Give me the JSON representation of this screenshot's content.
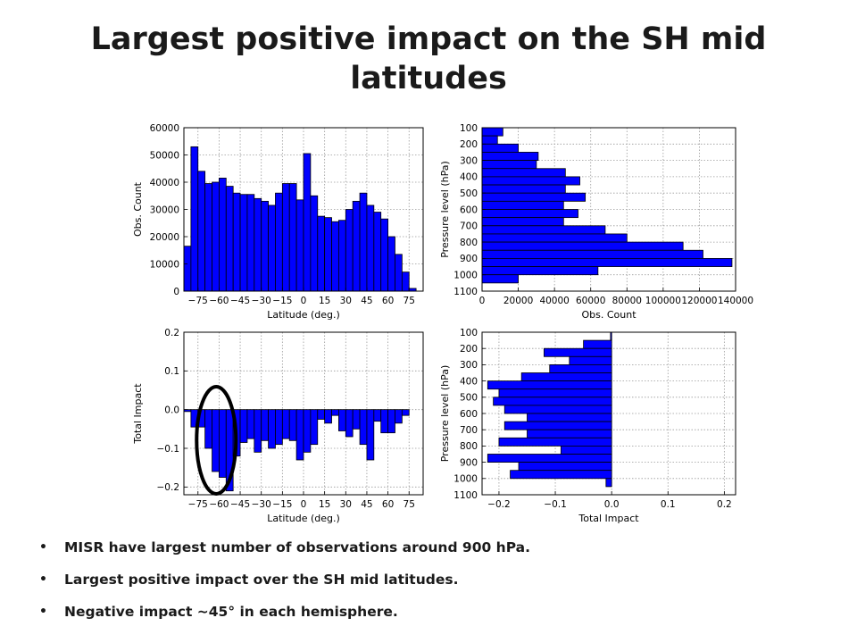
{
  "title": "Largest positive impact on the SH mid latitudes",
  "bullets": [
    "MISR have largest number of observations around 900 hPa.",
    "Largest positive impact over the SH mid latitudes.",
    "Negative impact ~45° in each hemisphere."
  ],
  "colors": {
    "bar": "#0000ff",
    "edge": "#000000",
    "grid": "#9a9a9a",
    "annotation": "#000000"
  },
  "chart_data": [
    {
      "type": "bar",
      "orientation": "vertical",
      "xlabel": "Latitude (deg.)",
      "ylabel": "Obs. Count",
      "xlim": [
        -85,
        85
      ],
      "ylim": [
        0,
        60000
      ],
      "xticks": [
        -75,
        -60,
        -45,
        -30,
        -15,
        0,
        15,
        30,
        45,
        60,
        75
      ],
      "xtick_labels": [
        "−75",
        "−60",
        "−45",
        "−30",
        "−15",
        "0",
        "15",
        "30",
        "45",
        "60",
        "75"
      ],
      "yticks": [
        0,
        10000,
        20000,
        30000,
        40000,
        50000,
        60000
      ],
      "bin_width": 5,
      "x": [
        -82.5,
        -77.5,
        -72.5,
        -67.5,
        -62.5,
        -57.5,
        -52.5,
        -47.5,
        -42.5,
        -37.5,
        -32.5,
        -27.5,
        -22.5,
        -17.5,
        -12.5,
        -7.5,
        -2.5,
        2.5,
        7.5,
        12.5,
        17.5,
        22.5,
        27.5,
        32.5,
        37.5,
        42.5,
        47.5,
        52.5,
        57.5,
        62.5,
        67.5,
        72.5,
        77.5
      ],
      "values": [
        16500,
        53000,
        44000,
        39500,
        40000,
        41500,
        38500,
        36000,
        35500,
        35500,
        34000,
        33000,
        31500,
        36000,
        39500,
        39500,
        33500,
        50500,
        35000,
        27500,
        27000,
        25500,
        26000,
        30000,
        33000,
        36000,
        31500,
        29000,
        26500,
        20000,
        13500,
        7000,
        1000
      ],
      "grid": true
    },
    {
      "type": "bar",
      "orientation": "horizontal",
      "xlabel": "Obs. Count",
      "ylabel": "Pressure level (hPa)",
      "xlim": [
        0,
        140000
      ],
      "ylim": [
        1100,
        100
      ],
      "xticks": [
        0,
        20000,
        40000,
        60000,
        80000,
        100000,
        120000,
        140000
      ],
      "xtick_labels": [
        "0",
        "20000",
        "40000",
        "60000",
        "80000",
        "100000",
        "120000",
        "140000"
      ],
      "yticks": [
        100,
        200,
        300,
        400,
        500,
        600,
        700,
        800,
        900,
        1000,
        1100
      ],
      "bin_width": 50,
      "y": [
        125,
        175,
        225,
        275,
        325,
        375,
        425,
        475,
        525,
        575,
        625,
        675,
        725,
        775,
        825,
        875,
        925,
        975,
        1025
      ],
      "values": [
        11500,
        8500,
        20000,
        31000,
        30000,
        46000,
        54000,
        46000,
        57000,
        45000,
        53000,
        45000,
        68000,
        80000,
        111000,
        122000,
        138000,
        64000,
        20000
      ],
      "grid": true
    },
    {
      "type": "bar",
      "orientation": "vertical",
      "xlabel": "Latitude (deg.)",
      "ylabel": "Total Impact",
      "xlim": [
        -85,
        85
      ],
      "ylim": [
        -0.22,
        0.2
      ],
      "xticks": [
        -75,
        -60,
        -45,
        -30,
        -15,
        0,
        15,
        30,
        45,
        60,
        75
      ],
      "xtick_labels": [
        "−75",
        "−60",
        "−45",
        "−30",
        "−15",
        "0",
        "15",
        "30",
        "45",
        "60",
        "75"
      ],
      "yticks": [
        -0.2,
        -0.1,
        0.0,
        0.1,
        0.2
      ],
      "ytick_labels": [
        "−0.2",
        "−0.1",
        "0.0",
        "0.1",
        "0.2"
      ],
      "bin_width": 5,
      "x": [
        -82.5,
        -77.5,
        -72.5,
        -67.5,
        -62.5,
        -57.5,
        -52.5,
        -47.5,
        -42.5,
        -37.5,
        -32.5,
        -27.5,
        -22.5,
        -17.5,
        -12.5,
        -7.5,
        -2.5,
        2.5,
        7.5,
        12.5,
        17.5,
        22.5,
        27.5,
        32.5,
        37.5,
        42.5,
        47.5,
        52.5,
        57.5,
        62.5,
        67.5,
        72.5
      ],
      "values": [
        -0.005,
        -0.045,
        -0.045,
        -0.1,
        -0.16,
        -0.175,
        -0.21,
        -0.12,
        -0.085,
        -0.075,
        -0.11,
        -0.08,
        -0.1,
        -0.09,
        -0.075,
        -0.08,
        -0.13,
        -0.11,
        -0.09,
        -0.025,
        -0.035,
        -0.015,
        -0.055,
        -0.07,
        -0.05,
        -0.09,
        -0.13,
        -0.03,
        -0.06,
        -0.06,
        -0.035,
        -0.015
      ],
      "grid": true,
      "annotation": "ellipse around −75 to −45"
    },
    {
      "type": "bar",
      "orientation": "horizontal",
      "xlabel": "Total Impact",
      "ylabel": "Pressure level (hPa)",
      "xlim": [
        -0.23,
        0.22
      ],
      "ylim": [
        1100,
        100
      ],
      "xticks": [
        -0.2,
        -0.1,
        0.0,
        0.1,
        0.2
      ],
      "xtick_labels": [
        "−0.2",
        "−0.1",
        "0.0",
        "0.1",
        "0.2"
      ],
      "yticks": [
        100,
        200,
        300,
        400,
        500,
        600,
        700,
        800,
        900,
        1000,
        1100
      ],
      "bin_width": 50,
      "y": [
        125,
        175,
        225,
        275,
        325,
        375,
        425,
        475,
        525,
        575,
        625,
        675,
        725,
        775,
        825,
        875,
        925,
        975,
        1025
      ],
      "values": [
        -0.002,
        -0.05,
        -0.12,
        -0.075,
        -0.11,
        -0.16,
        -0.22,
        -0.2,
        -0.21,
        -0.19,
        -0.15,
        -0.19,
        -0.15,
        -0.2,
        -0.09,
        -0.22,
        -0.165,
        -0.18,
        -0.01
      ],
      "grid": true
    }
  ]
}
